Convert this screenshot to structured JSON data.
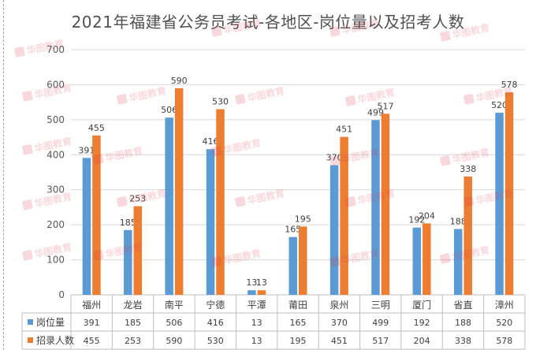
{
  "chart_data": {
    "type": "bar",
    "title": "2021年福建省公务员考试-各地区-岗位量以及招考人数",
    "categories": [
      "福州",
      "龙岩",
      "南平",
      "宁德",
      "平潭",
      "莆田",
      "泉州",
      "三明",
      "厦门",
      "省直",
      "漳州"
    ],
    "series": [
      {
        "name": "岗位量",
        "color": "#5b9bd5",
        "values": [
          391,
          185,
          506,
          416,
          13,
          165,
          370,
          499,
          192,
          188,
          520
        ]
      },
      {
        "name": "招录人数",
        "color": "#ed7d31",
        "values": [
          455,
          253,
          590,
          530,
          13,
          195,
          451,
          517,
          204,
          338,
          578
        ]
      }
    ],
    "y_ticks": [
      "0",
      "100",
      "200",
      "300",
      "400",
      "500",
      "600",
      "700"
    ],
    "ylim": [
      0,
      700
    ],
    "grid": true,
    "legend": "data-table",
    "data_table": true,
    "watermark": "华图教育"
  }
}
